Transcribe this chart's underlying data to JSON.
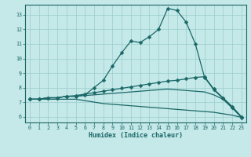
{
  "xlabel": "Humidex (Indice chaleur)",
  "xlim": [
    -0.5,
    23.5
  ],
  "ylim": [
    5.6,
    13.7
  ],
  "yticks": [
    6,
    7,
    8,
    9,
    10,
    11,
    12,
    13
  ],
  "xticks": [
    0,
    1,
    2,
    3,
    4,
    5,
    6,
    7,
    8,
    9,
    10,
    11,
    12,
    13,
    14,
    15,
    16,
    17,
    18,
    19,
    20,
    21,
    22,
    23
  ],
  "bg_color": "#c5e8e8",
  "grid_color": "#99cccc",
  "line_color": "#1a6868",
  "line1_x": [
    0,
    1,
    2,
    3,
    4,
    5,
    6,
    7,
    8,
    9,
    10,
    11,
    12,
    13,
    14,
    15,
    16,
    17,
    18,
    19,
    20,
    21,
    22,
    23
  ],
  "line1_y": [
    7.2,
    7.2,
    7.3,
    7.3,
    7.4,
    7.4,
    7.5,
    8.0,
    8.5,
    9.5,
    10.4,
    11.2,
    11.1,
    11.5,
    12.0,
    13.45,
    13.3,
    12.5,
    11.0,
    8.7,
    7.85,
    7.25,
    6.65,
    5.95
  ],
  "line2_x": [
    0,
    1,
    2,
    3,
    4,
    5,
    6,
    7,
    8,
    9,
    10,
    11,
    12,
    13,
    14,
    15,
    16,
    17,
    18,
    19,
    20,
    21,
    22,
    23
  ],
  "line2_y": [
    7.2,
    7.2,
    7.3,
    7.3,
    7.4,
    7.45,
    7.55,
    7.65,
    7.75,
    7.85,
    7.95,
    8.05,
    8.15,
    8.25,
    8.35,
    8.45,
    8.5,
    8.6,
    8.7,
    8.75,
    7.9,
    7.3,
    6.7,
    6.0
  ],
  "line3_x": [
    0,
    1,
    2,
    3,
    4,
    5,
    6,
    7,
    8,
    9,
    10,
    11,
    12,
    13,
    14,
    15,
    16,
    17,
    18,
    19,
    20,
    21,
    22,
    23
  ],
  "line3_y": [
    7.2,
    7.2,
    7.3,
    7.3,
    7.4,
    7.4,
    7.45,
    7.5,
    7.55,
    7.6,
    7.65,
    7.7,
    7.75,
    7.8,
    7.85,
    7.9,
    7.85,
    7.8,
    7.75,
    7.7,
    7.5,
    7.2,
    6.6,
    5.95
  ],
  "line4_x": [
    0,
    1,
    2,
    3,
    4,
    5,
    6,
    7,
    8,
    9,
    10,
    11,
    12,
    13,
    14,
    15,
    16,
    17,
    18,
    19,
    20,
    21,
    22,
    23
  ],
  "line4_y": [
    7.2,
    7.2,
    7.2,
    7.2,
    7.2,
    7.2,
    7.1,
    7.0,
    6.9,
    6.85,
    6.8,
    6.75,
    6.7,
    6.65,
    6.6,
    6.55,
    6.5,
    6.45,
    6.4,
    6.35,
    6.3,
    6.2,
    6.1,
    5.95
  ]
}
